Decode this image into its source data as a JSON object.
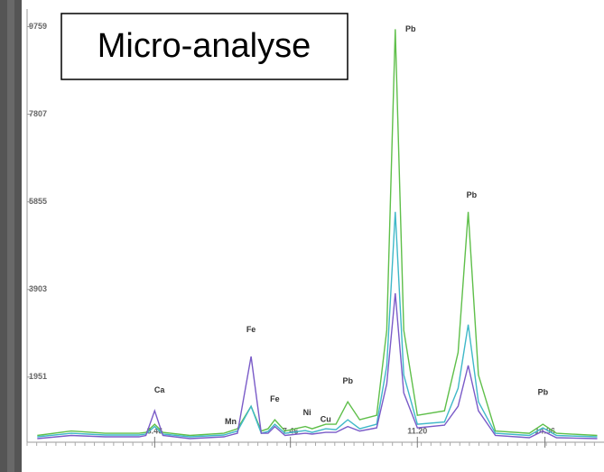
{
  "chart_data": {
    "type": "line",
    "title": "Micro-analyse",
    "x": [
      0,
      1,
      2,
      3,
      3.2,
      3.46,
      3.7,
      4.5,
      5.5,
      5.9,
      6.3,
      6.6,
      6.8,
      7.0,
      7.3,
      7.9,
      8.1,
      8.5,
      8.8,
      9.15,
      9.5,
      10.0,
      10.3,
      10.55,
      10.8,
      11.2,
      12.0,
      12.4,
      12.7,
      13.0,
      13.5,
      14.5,
      14.9,
      15.3,
      16.5
    ],
    "series": [
      {
        "color": "#5fbf4a",
        "values": [
          650,
          750,
          700,
          700,
          720,
          900,
          720,
          650,
          700,
          800,
          1300,
          750,
          800,
          1000,
          750,
          850,
          800,
          900,
          900,
          1400,
          1000,
          1100,
          3000,
          9700,
          3000,
          1100,
          1200,
          2500,
          5630,
          2000,
          750,
          700,
          900,
          700,
          650
        ]
      },
      {
        "color": "#3fb8c8",
        "values": [
          620,
          700,
          660,
          660,
          680,
          850,
          680,
          620,
          660,
          750,
          1300,
          700,
          740,
          900,
          700,
          760,
          720,
          800,
          780,
          1000,
          800,
          900,
          2200,
          5630,
          2000,
          900,
          950,
          1700,
          3120,
          1400,
          700,
          650,
          820,
          650,
          620
        ]
      },
      {
        "color": "#7a5bc8",
        "values": [
          580,
          650,
          620,
          620,
          650,
          1200,
          650,
          580,
          620,
          700,
          2410,
          700,
          700,
          850,
          650,
          700,
          680,
          720,
          720,
          850,
          750,
          820,
          1800,
          3820,
          1600,
          820,
          880,
          1300,
          2210,
          1200,
          650,
          600,
          750,
          600,
          580
        ]
      }
    ],
    "xlim": [
      -0.3,
      16.7
    ],
    "ylim": [
      500,
      10050
    ],
    "yticks": [
      1951,
      3903,
      5855,
      7807,
      9759
    ],
    "xticks": [
      3.46,
      7.46,
      {
        "value": 11.2,
        "label": "11.20"
      },
      14.96
    ],
    "annotations": [
      {
        "text": "Ca",
        "x": 3.6,
        "y": 1650
      },
      {
        "text": "Mn",
        "x": 5.7,
        "y": 950
      },
      {
        "text": "Fe",
        "x": 6.3,
        "y": 3000
      },
      {
        "text": "Fe",
        "x": 7.0,
        "y": 1450
      },
      {
        "text": "Ni",
        "x": 7.95,
        "y": 1150
      },
      {
        "text": "Cu",
        "x": 8.5,
        "y": 1000
      },
      {
        "text": "Pb",
        "x": 9.15,
        "y": 1850
      },
      {
        "text": "Pb",
        "x": 11.0,
        "y": 9700
      },
      {
        "text": "Pb",
        "x": 12.8,
        "y": 6000
      },
      {
        "text": "Pb",
        "x": 14.9,
        "y": 1600
      }
    ]
  }
}
